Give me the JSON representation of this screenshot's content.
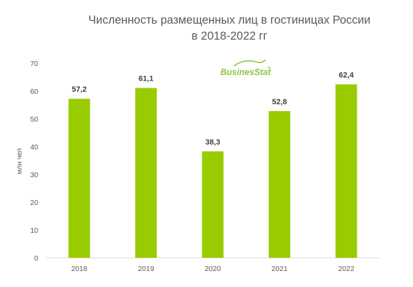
{
  "title_line1": "Численность размещенных лиц в гостиницах России",
  "title_line2": "в 2018-2022 гг",
  "logo": {
    "text": "BusinesStat",
    "color": "#8dc63f"
  },
  "chart_data": {
    "type": "bar",
    "title": "Численность размещенных лиц в гостиницах России в 2018-2022 гг",
    "xlabel": "",
    "ylabel": "млн чел",
    "categories": [
      "2018",
      "2019",
      "2020",
      "2021",
      "2022"
    ],
    "values": [
      57.2,
      61.1,
      38.3,
      52.8,
      62.4
    ],
    "value_labels": [
      "57,2",
      "61,1",
      "38,3",
      "52,8",
      "62,4"
    ],
    "ylim": [
      0,
      70
    ],
    "yticks": [
      0,
      10,
      20,
      30,
      40,
      50,
      60,
      70
    ],
    "grid": false,
    "legend": "none",
    "bar_color": "#99cc00"
  }
}
